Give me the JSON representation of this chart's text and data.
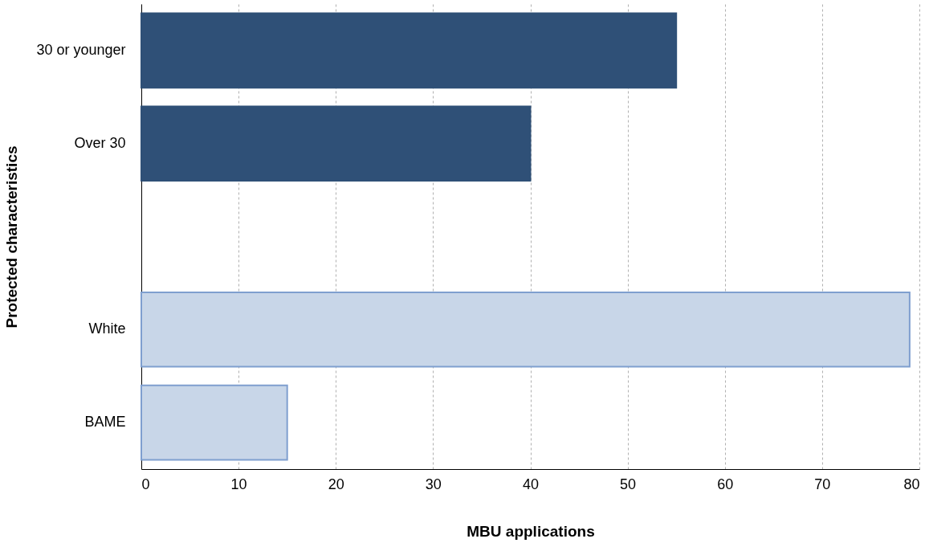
{
  "chart_data": {
    "type": "bar",
    "orientation": "horizontal",
    "xlabel": "MBU applications",
    "ylabel": "Protected characteristics",
    "categories": [
      "30 or younger",
      "Over 30",
      null,
      "White",
      "BAME"
    ],
    "values": [
      55,
      40,
      null,
      79,
      15
    ],
    "colors": [
      "#2f5077",
      "#2f5077",
      null,
      "#c8d6e8",
      "#c8d6e8"
    ],
    "xlim": [
      0,
      80
    ],
    "xticks": [
      0,
      10,
      20,
      30,
      40,
      50,
      60,
      70,
      80
    ],
    "grid": "x"
  }
}
